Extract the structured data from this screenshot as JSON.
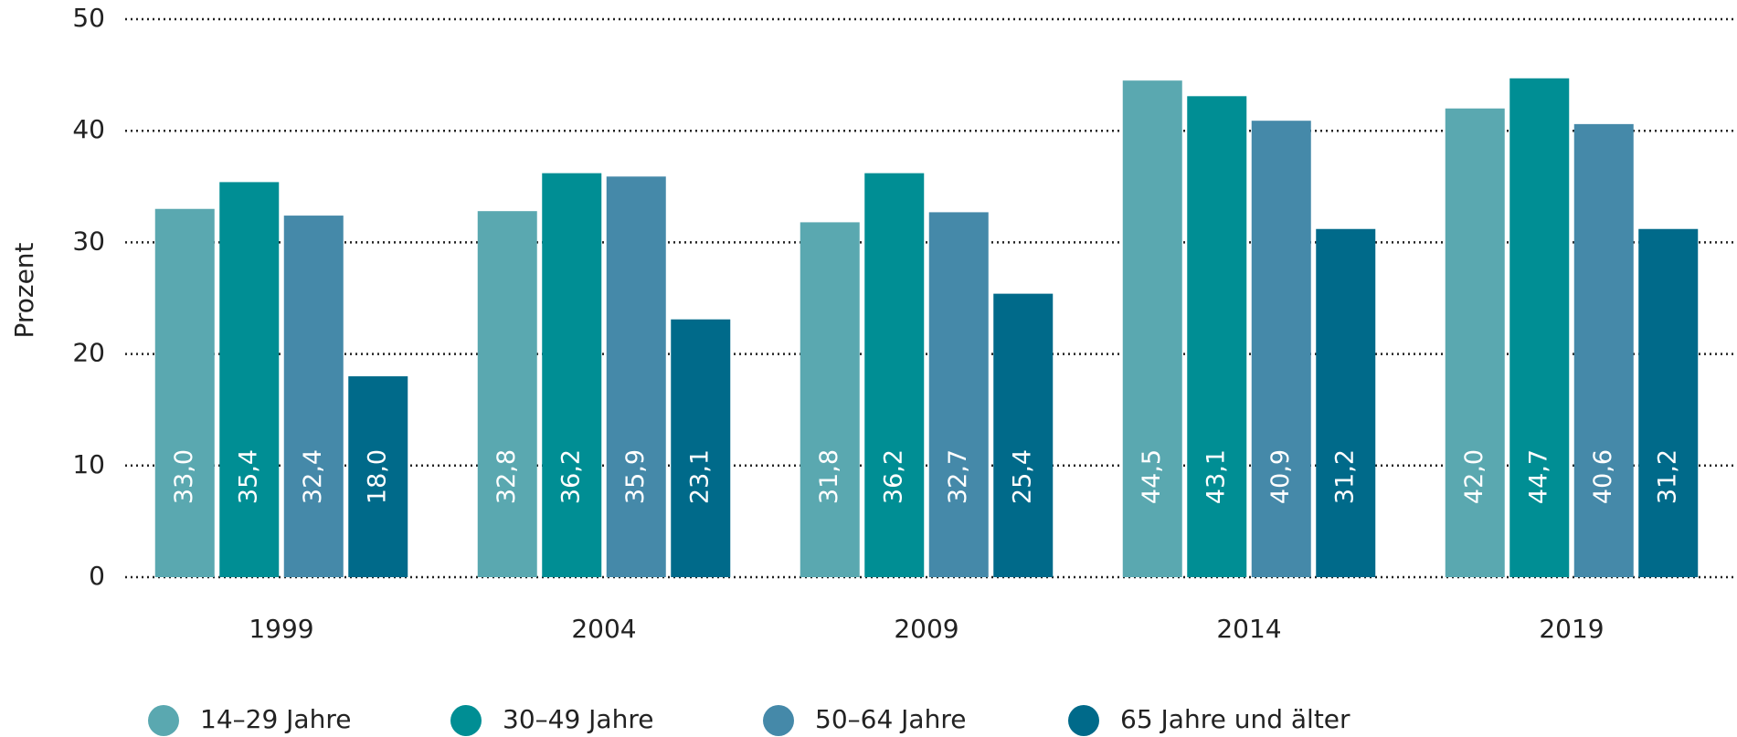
{
  "chart_data": {
    "type": "bar",
    "categories": [
      "1999",
      "2004",
      "2009",
      "2014",
      "2019"
    ],
    "y_label": "Prozent",
    "series": [
      {
        "name": "14–29 Jahre",
        "color": "#5aa8b0",
        "values": [
          33.0,
          32.8,
          31.8,
          44.5,
          42.0
        ],
        "value_labels": [
          "33,0",
          "32,8",
          "31,8",
          "44,5",
          "42,0"
        ]
      },
      {
        "name": "30–49 Jahre",
        "color": "#008e94",
        "values": [
          35.4,
          36.2,
          36.2,
          43.1,
          44.7
        ],
        "value_labels": [
          "35,4",
          "36,2",
          "36,2",
          "43,1",
          "44,7"
        ]
      },
      {
        "name": "50–64 Jahre",
        "color": "#4589a9",
        "values": [
          32.4,
          35.9,
          32.7,
          40.9,
          40.6
        ],
        "value_labels": [
          "32,4",
          "35,9",
          "32,7",
          "40,9",
          "40,6"
        ]
      },
      {
        "name": "65 Jahre und älter",
        "color": "#006a8a",
        "values": [
          18.0,
          23.1,
          25.4,
          31.2,
          31.2
        ],
        "value_labels": [
          "18,0",
          "23,1",
          "25,4",
          "31,2",
          "31,2"
        ]
      }
    ],
    "ylim": [
      0,
      50
    ],
    "yticks": [
      0,
      10,
      20,
      30,
      40,
      50
    ],
    "grid": true,
    "legend": "bottom"
  }
}
